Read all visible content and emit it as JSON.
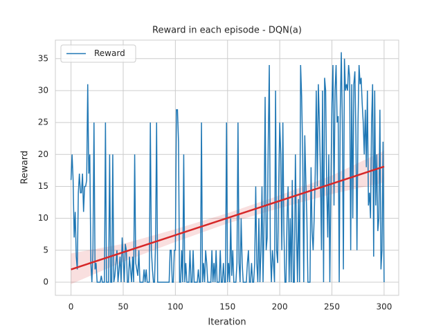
{
  "chart_data": {
    "type": "line",
    "title": "Reward in each episode - DQN(a)",
    "x_label": "Iteration",
    "y_label": "Reward",
    "xlim": [
      -15,
      314
    ],
    "ylim": [
      -2.06,
      37.9
    ],
    "xticks": [
      0,
      50,
      100,
      150,
      200,
      250,
      300
    ],
    "yticks": [
      0,
      5,
      10,
      15,
      20,
      25,
      30,
      35
    ],
    "grid": true,
    "legend": "upper left",
    "series": [
      {
        "name": "Reward",
        "color": "#1f77b4",
        "x": [
          0,
          1,
          2,
          3,
          4,
          5,
          6,
          7,
          8,
          9,
          10,
          11,
          12,
          13,
          14,
          15,
          16,
          17,
          18,
          19,
          20,
          21,
          22,
          23,
          24,
          25,
          26,
          27,
          28,
          29,
          30,
          31,
          32,
          33,
          34,
          35,
          36,
          37,
          38,
          39,
          40,
          41,
          42,
          43,
          44,
          45,
          46,
          47,
          48,
          49,
          50,
          51,
          52,
          53,
          54,
          55,
          56,
          57,
          58,
          59,
          60,
          61,
          62,
          63,
          64,
          65,
          66,
          67,
          68,
          69,
          70,
          71,
          72,
          73,
          74,
          75,
          76,
          77,
          78,
          79,
          80,
          81,
          82,
          83,
          84,
          85,
          86,
          87,
          88,
          89,
          90,
          91,
          92,
          93,
          94,
          95,
          96,
          97,
          98,
          99,
          100,
          101,
          102,
          103,
          104,
          105,
          106,
          107,
          108,
          109,
          110,
          111,
          112,
          113,
          114,
          115,
          116,
          117,
          118,
          119,
          120,
          121,
          122,
          123,
          124,
          125,
          126,
          127,
          128,
          129,
          130,
          131,
          132,
          133,
          134,
          135,
          136,
          137,
          138,
          139,
          140,
          141,
          142,
          143,
          144,
          145,
          146,
          147,
          148,
          149,
          150,
          151,
          152,
          153,
          154,
          155,
          156,
          157,
          158,
          159,
          160,
          161,
          162,
          163,
          164,
          165,
          166,
          167,
          168,
          169,
          170,
          171,
          172,
          173,
          174,
          175,
          176,
          177,
          178,
          179,
          180,
          181,
          182,
          183,
          184,
          185,
          186,
          187,
          188,
          189,
          190,
          191,
          192,
          193,
          194,
          195,
          196,
          197,
          198,
          199,
          200,
          201,
          202,
          203,
          204,
          205,
          206,
          207,
          208,
          209,
          210,
          211,
          212,
          213,
          214,
          215,
          216,
          217,
          218,
          219,
          220,
          221,
          222,
          223,
          224,
          225,
          226,
          227,
          228,
          229,
          230,
          231,
          232,
          233,
          234,
          235,
          236,
          237,
          238,
          239,
          240,
          241,
          242,
          243,
          244,
          245,
          246,
          247,
          248,
          249,
          250,
          251,
          252,
          253,
          254,
          255,
          256,
          257,
          258,
          259,
          260,
          261,
          262,
          263,
          264,
          265,
          266,
          267,
          268,
          269,
          270,
          271,
          272,
          273,
          274,
          275,
          276,
          277,
          278,
          279,
          280,
          281,
          282,
          283,
          284,
          285,
          286,
          287,
          288,
          289,
          290,
          291,
          292,
          293,
          294,
          295,
          296,
          297,
          298,
          299,
          300
        ],
        "values": [
          16,
          20,
          16,
          7,
          11,
          4,
          2,
          14,
          17,
          14,
          14,
          17,
          11,
          15,
          15,
          16,
          31,
          17,
          20,
          3,
          0,
          5,
          25,
          2,
          3,
          0,
          0,
          0,
          0,
          1,
          0,
          0,
          0,
          25,
          0,
          0,
          0,
          20,
          0,
          0,
          20,
          0,
          1,
          3,
          5,
          0,
          2,
          4,
          0,
          7,
          4,
          0,
          6,
          5,
          0,
          0,
          4,
          2,
          0,
          4,
          0,
          20,
          3,
          2,
          1,
          5,
          0,
          0,
          0,
          0,
          2,
          0,
          2,
          0,
          0,
          0,
          25,
          5,
          2,
          0,
          0,
          6,
          25,
          0,
          0,
          0,
          0,
          0,
          0,
          0,
          0,
          0,
          0,
          0,
          0,
          5,
          5,
          0,
          0,
          5,
          5,
          27,
          27,
          22,
          0,
          0,
          5,
          0,
          20,
          0,
          3,
          0,
          0,
          0,
          5,
          0,
          0,
          5,
          0,
          0,
          0,
          0,
          2,
          0,
          0,
          25,
          0,
          3,
          0,
          5,
          3,
          0,
          0,
          0,
          0,
          5,
          0,
          3,
          0,
          5,
          0,
          0,
          0,
          5,
          0,
          0,
          3,
          0,
          0,
          25,
          0,
          3,
          0,
          10,
          1,
          5,
          0,
          0,
          0,
          3,
          25,
          3,
          0,
          10,
          3,
          0,
          0,
          0,
          0,
          3,
          5,
          0,
          0,
          3,
          0,
          0,
          3,
          15,
          3,
          0,
          10,
          0,
          5,
          15,
          0,
          10,
          29,
          5,
          7,
          22,
          34,
          5,
          0,
          5,
          3,
          0,
          30,
          5,
          3,
          15,
          25,
          20,
          5,
          25,
          8,
          0,
          0,
          10,
          15,
          0,
          10,
          0,
          16,
          0,
          0,
          20,
          8,
          0,
          13,
          0,
          34,
          29,
          20,
          0,
          23,
          16,
          10,
          0,
          0,
          0,
          18,
          8,
          5,
          10,
          17,
          30,
          15,
          31,
          25,
          17,
          5,
          30,
          0,
          32,
          30,
          15,
          7,
          20,
          0,
          15,
          28,
          34,
          12,
          30,
          34,
          25,
          26,
          0,
          27,
          36,
          25,
          2,
          35,
          30,
          31,
          30,
          34,
          32,
          5,
          31,
          10,
          31,
          33,
          23,
          5,
          25,
          34,
          31,
          32,
          28,
          25,
          20,
          27,
          18,
          30,
          12,
          14,
          10,
          25,
          31,
          4,
          30,
          12,
          20,
          8,
          10,
          27,
          2,
          5,
          22,
          0
        ]
      }
    ],
    "trend": {
      "color": "#d62728",
      "x": [
        0,
        300
      ],
      "values": [
        2,
        18.1
      ]
    },
    "band": {
      "color": "#d62728",
      "x": [
        0,
        50,
        100,
        150,
        200,
        250,
        300
      ],
      "lower": [
        -0.3,
        3.2,
        6.3,
        9.2,
        11.6,
        13.8,
        15.6
      ],
      "upper": [
        4.5,
        6.0,
        8.3,
        10.8,
        13.6,
        16.7,
        20.6
      ]
    }
  }
}
